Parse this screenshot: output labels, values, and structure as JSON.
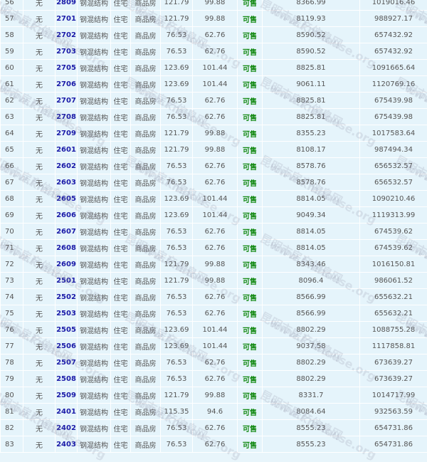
{
  "watermark": [
    "昆明市房产信息网",
    "www.kmhouse.org"
  ],
  "colors": {
    "row_bg": "#e5f4fb",
    "room_link": "#1a1aa8",
    "status": "#118811"
  },
  "rows": [
    [
      "56",
      "无",
      "2809",
      "钢混结构",
      "住宅",
      "商品房",
      "121.79",
      "99.88",
      "可售",
      "8366.99",
      "1019016.46"
    ],
    [
      "57",
      "无",
      "2701",
      "钢混结构",
      "住宅",
      "商品房",
      "121.79",
      "99.88",
      "可售",
      "8119.93",
      "988927.17"
    ],
    [
      "58",
      "无",
      "2702",
      "钢混结构",
      "住宅",
      "商品房",
      "76.53",
      "62.76",
      "可售",
      "8590.52",
      "657432.92"
    ],
    [
      "59",
      "无",
      "2703",
      "钢混结构",
      "住宅",
      "商品房",
      "76.53",
      "62.76",
      "可售",
      "8590.52",
      "657432.92"
    ],
    [
      "60",
      "无",
      "2705",
      "钢混结构",
      "住宅",
      "商品房",
      "123.69",
      "101.44",
      "可售",
      "8825.81",
      "1091665.64"
    ],
    [
      "61",
      "无",
      "2706",
      "钢混结构",
      "住宅",
      "商品房",
      "123.69",
      "101.44",
      "可售",
      "9061.11",
      "1120769.16"
    ],
    [
      "62",
      "无",
      "2707",
      "钢混结构",
      "住宅",
      "商品房",
      "76.53",
      "62.76",
      "可售",
      "8825.81",
      "675439.98"
    ],
    [
      "63",
      "无",
      "2708",
      "钢混结构",
      "住宅",
      "商品房",
      "76.53",
      "62.76",
      "可售",
      "8825.81",
      "675439.98"
    ],
    [
      "64",
      "无",
      "2709",
      "钢混结构",
      "住宅",
      "商品房",
      "121.79",
      "99.88",
      "可售",
      "8355.23",
      "1017583.64"
    ],
    [
      "65",
      "无",
      "2601",
      "钢混结构",
      "住宅",
      "商品房",
      "121.79",
      "99.88",
      "可售",
      "8108.17",
      "987494.34"
    ],
    [
      "66",
      "无",
      "2602",
      "钢混结构",
      "住宅",
      "商品房",
      "76.53",
      "62.76",
      "可售",
      "8578.76",
      "656532.57"
    ],
    [
      "67",
      "无",
      "2603",
      "钢混结构",
      "住宅",
      "商品房",
      "76.53",
      "62.76",
      "可售",
      "8578.76",
      "656532.57"
    ],
    [
      "68",
      "无",
      "2605",
      "钢混结构",
      "住宅",
      "商品房",
      "123.69",
      "101.44",
      "可售",
      "8814.05",
      "1090210.46"
    ],
    [
      "69",
      "无",
      "2606",
      "钢混结构",
      "住宅",
      "商品房",
      "123.69",
      "101.44",
      "可售",
      "9049.34",
      "1119313.99"
    ],
    [
      "70",
      "无",
      "2607",
      "钢混结构",
      "住宅",
      "商品房",
      "76.53",
      "62.76",
      "可售",
      "8814.05",
      "674539.62"
    ],
    [
      "71",
      "无",
      "2608",
      "钢混结构",
      "住宅",
      "商品房",
      "76.53",
      "62.76",
      "可售",
      "8814.05",
      "674539.62"
    ],
    [
      "72",
      "无",
      "2609",
      "钢混结构",
      "住宅",
      "商品房",
      "121.79",
      "99.88",
      "可售",
      "8343.46",
      "1016150.81"
    ],
    [
      "73",
      "无",
      "2501",
      "钢混结构",
      "住宅",
      "商品房",
      "121.79",
      "99.88",
      "可售",
      "8096.4",
      "986061.52"
    ],
    [
      "74",
      "无",
      "2502",
      "钢混结构",
      "住宅",
      "商品房",
      "76.53",
      "62.76",
      "可售",
      "8566.99",
      "655632.21"
    ],
    [
      "75",
      "无",
      "2503",
      "钢混结构",
      "住宅",
      "商品房",
      "76.53",
      "62.76",
      "可售",
      "8566.99",
      "655632.21"
    ],
    [
      "76",
      "无",
      "2505",
      "钢混结构",
      "住宅",
      "商品房",
      "123.69",
      "101.44",
      "可售",
      "8802.29",
      "1088755.28"
    ],
    [
      "77",
      "无",
      "2506",
      "钢混结构",
      "住宅",
      "商品房",
      "123.69",
      "101.44",
      "可售",
      "9037.58",
      "1117858.81"
    ],
    [
      "78",
      "无",
      "2507",
      "钢混结构",
      "住宅",
      "商品房",
      "76.53",
      "62.76",
      "可售",
      "8802.29",
      "673639.27"
    ],
    [
      "79",
      "无",
      "2508",
      "钢混结构",
      "住宅",
      "商品房",
      "76.53",
      "62.76",
      "可售",
      "8802.29",
      "673639.27"
    ],
    [
      "80",
      "无",
      "2509",
      "钢混结构",
      "住宅",
      "商品房",
      "121.79",
      "99.88",
      "可售",
      "8331.7",
      "1014717.99"
    ],
    [
      "81",
      "无",
      "2401",
      "钢混结构",
      "住宅",
      "商品房",
      "115.35",
      "94.6",
      "可售",
      "8084.64",
      "932563.59"
    ],
    [
      "82",
      "无",
      "2402",
      "钢混结构",
      "住宅",
      "商品房",
      "76.53",
      "62.76",
      "可售",
      "8555.23",
      "654731.86"
    ],
    [
      "83",
      "无",
      "2403",
      "钢混结构",
      "住宅",
      "商品房",
      "76.53",
      "62.76",
      "可售",
      "8555.23",
      "654731.86"
    ]
  ]
}
